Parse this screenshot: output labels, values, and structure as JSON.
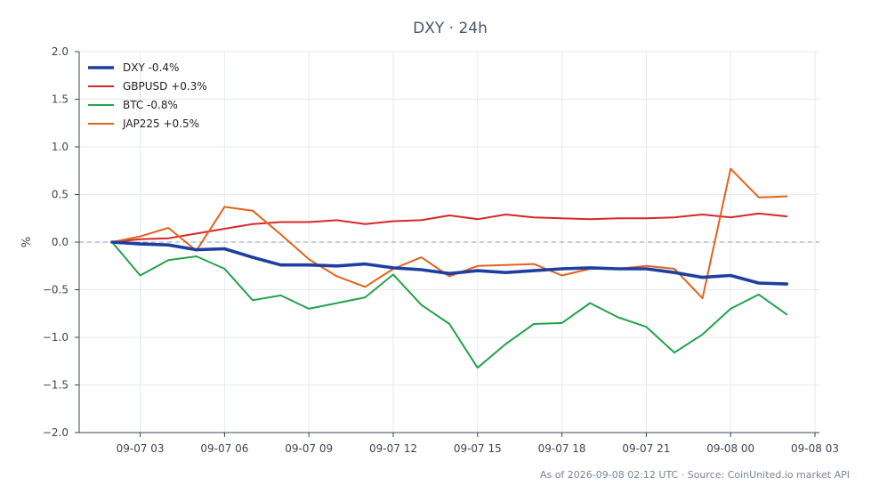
{
  "chart_data": {
    "type": "line",
    "title": "DXY · 24h",
    "xlabel": "",
    "ylabel": "%",
    "ylim": [
      -2.0,
      2.0
    ],
    "y_ticks": [
      "2.0",
      "1.5",
      "1.0",
      "0.5",
      "0.0",
      "−0.5",
      "−1.0",
      "−1.5",
      "−2.0"
    ],
    "x_tick_labels": [
      "09-07 03",
      "09-07 06",
      "09-07 09",
      "09-07 12",
      "09-07 15",
      "09-07 18",
      "09-07 21",
      "09-08 00",
      "09-08 03"
    ],
    "x": [
      "09-07 02:00",
      "09-07 03:00",
      "09-07 04:00",
      "09-07 05:00",
      "09-07 06:00",
      "09-07 07:00",
      "09-07 08:00",
      "09-07 09:00",
      "09-07 10:00",
      "09-07 11:00",
      "09-07 12:00",
      "09-07 13:00",
      "09-07 14:00",
      "09-07 15:00",
      "09-07 16:00",
      "09-07 17:00",
      "09-07 18:00",
      "09-07 19:00",
      "09-07 20:00",
      "09-07 21:00",
      "09-07 22:00",
      "09-07 23:00",
      "09-08 00:00",
      "09-08 01:00",
      "09-08 02:00"
    ],
    "grid": true,
    "zero_line": true,
    "legend_position": "top-left",
    "series": [
      {
        "name": "DXY -0.4%",
        "color": "#1f3fa0",
        "bold": true,
        "values": [
          0.0,
          -0.02,
          -0.03,
          -0.08,
          -0.07,
          -0.16,
          -0.24,
          -0.24,
          -0.25,
          -0.23,
          -0.27,
          -0.29,
          -0.33,
          -0.3,
          -0.32,
          -0.3,
          -0.28,
          -0.27,
          -0.28,
          -0.28,
          -0.32,
          -0.37,
          -0.35,
          -0.43,
          -0.44
        ]
      },
      {
        "name": "GBPUSD +0.3%",
        "color": "#d62828",
        "values": [
          0.0,
          0.03,
          0.04,
          0.09,
          0.14,
          0.19,
          0.21,
          0.21,
          0.23,
          0.19,
          0.22,
          0.23,
          0.28,
          0.24,
          0.29,
          0.26,
          0.25,
          0.24,
          0.25,
          0.25,
          0.26,
          0.29,
          0.26,
          0.3,
          0.27
        ]
      },
      {
        "name": "BTC -0.8%",
        "color": "#22a34a",
        "values": [
          0.0,
          -0.35,
          -0.19,
          -0.15,
          -0.28,
          -0.61,
          -0.56,
          -0.7,
          -0.64,
          -0.58,
          -0.34,
          -0.66,
          -0.86,
          -1.32,
          -1.07,
          -0.86,
          -0.85,
          -0.64,
          -0.79,
          -0.89,
          -1.16,
          -0.97,
          -0.7,
          -0.55,
          -0.76
        ]
      },
      {
        "name": "JAP225 +0.5%",
        "color": "#e2621b",
        "values": [
          0.0,
          0.06,
          0.15,
          -0.09,
          0.37,
          0.33,
          0.08,
          -0.18,
          -0.36,
          -0.47,
          -0.28,
          -0.16,
          -0.36,
          -0.25,
          -0.24,
          -0.23,
          -0.35,
          -0.28,
          -0.28,
          -0.25,
          -0.28,
          -0.59,
          0.77,
          0.47,
          0.48
        ]
      }
    ]
  },
  "footer": "As of 2026-09-08 02:12 UTC · Source: CoinUnited.io market API"
}
